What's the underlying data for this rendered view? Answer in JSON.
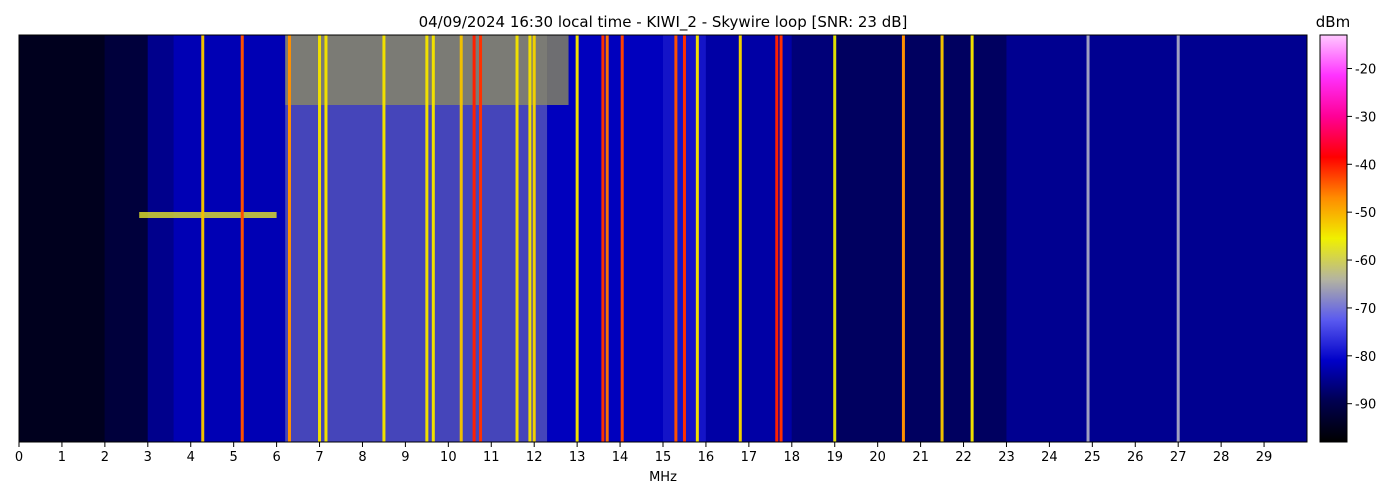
{
  "chart_data": {
    "type": "heatmap",
    "title": "04/09/2024 16:30 local time - KIWI_2 - Skywire loop [SNR: 23 dB]",
    "xlabel": "MHz",
    "ylabel": "",
    "xlim": [
      0,
      30
    ],
    "x_ticks": [
      "0",
      "1",
      "2",
      "3",
      "4",
      "5",
      "6",
      "7",
      "8",
      "9",
      "10",
      "11",
      "12",
      "13",
      "14",
      "15",
      "16",
      "17",
      "18",
      "19",
      "20",
      "21",
      "22",
      "23",
      "24",
      "25",
      "26",
      "27",
      "28",
      "29"
    ],
    "colorbar": {
      "label": "dBm",
      "range": [
        -98,
        -13
      ],
      "ticks": [
        "-20",
        "-30",
        "-40",
        "-50",
        "-60",
        "-70",
        "-80",
        "-90"
      ],
      "tick_values": [
        -20,
        -30,
        -40,
        -50,
        -60,
        -70,
        -80,
        -90
      ],
      "colormap": [
        "#000000",
        "#000050",
        "#0000c8",
        "#5a5af0",
        "#b4b4a0",
        "#f0f000",
        "#ff8c00",
        "#ff0000",
        "#ff0096",
        "#ff32ff",
        "#ffc8ff"
      ]
    },
    "carriers_mhz": [
      {
        "f": 4.28,
        "color": "#f0c000"
      },
      {
        "f": 5.2,
        "color": "#ff5000"
      },
      {
        "f": 6.3,
        "color": "#ff9000"
      },
      {
        "f": 7.0,
        "color": "#f0e000"
      },
      {
        "f": 7.15,
        "color": "#f0e000"
      },
      {
        "f": 8.5,
        "color": "#f0e000"
      },
      {
        "f": 9.5,
        "color": "#f0e000"
      },
      {
        "f": 9.65,
        "color": "#f0e000"
      },
      {
        "f": 10.3,
        "color": "#f0c000"
      },
      {
        "f": 10.6,
        "color": "#ff2000"
      },
      {
        "f": 10.75,
        "color": "#ff3000"
      },
      {
        "f": 11.6,
        "color": "#f0e000"
      },
      {
        "f": 11.9,
        "color": "#f0e000"
      },
      {
        "f": 12.0,
        "color": "#f0d000"
      },
      {
        "f": 13.0,
        "color": "#f0e000"
      },
      {
        "f": 13.6,
        "color": "#ff3000"
      },
      {
        "f": 13.7,
        "color": "#ff7000"
      },
      {
        "f": 14.05,
        "color": "#ff4000"
      },
      {
        "f": 15.3,
        "color": "#ff5000"
      },
      {
        "f": 15.5,
        "color": "#ff3000"
      },
      {
        "f": 15.8,
        "color": "#f0e000"
      },
      {
        "f": 16.8,
        "color": "#f0d000"
      },
      {
        "f": 17.65,
        "color": "#ff2000"
      },
      {
        "f": 17.75,
        "color": "#ff3000"
      },
      {
        "f": 19.0,
        "color": "#e0e000"
      },
      {
        "f": 20.6,
        "color": "#ff9000"
      },
      {
        "f": 21.5,
        "color": "#f0c000"
      },
      {
        "f": 22.2,
        "color": "#f0e000"
      },
      {
        "f": 24.9,
        "color": "#a0a0c0"
      },
      {
        "f": 27.0,
        "color": "#a0a0c0"
      }
    ]
  }
}
